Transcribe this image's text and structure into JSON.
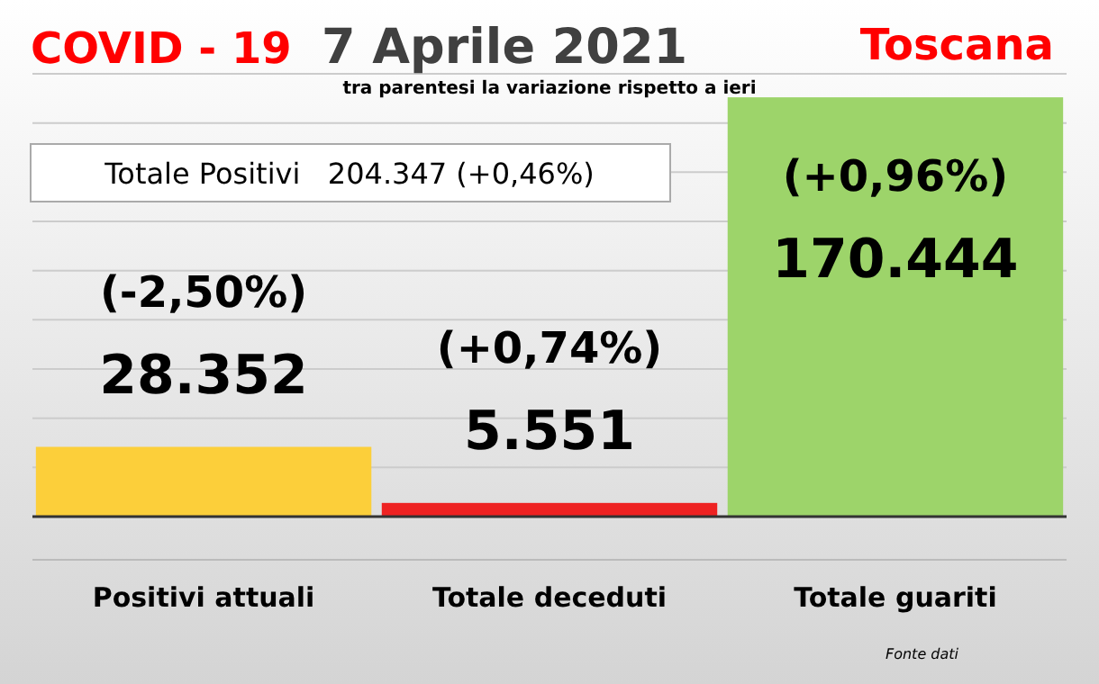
{
  "chart_data": {
    "type": "bar",
    "title": "7 Aprile 2021",
    "subtitle": "tra parentesi la variazione rispetto a ieri",
    "annotations": [
      "COVID - 19",
      "Toscana",
      "Totale Positivi   204.347 (+0,46%)",
      {
        "text": "(-2,50%)",
        "x": "Positivi attuali",
        "y": 28352
      },
      {
        "text": "(+0,74%)",
        "x": "Totale deceduti",
        "y": 5551
      },
      {
        "text": "(+0,96%)",
        "x": "Totale guariti",
        "y": 170444
      },
      "Fonte dati"
    ],
    "categories": [
      "Positivi attuali",
      "Totale deceduti",
      "Totale guariti"
    ],
    "values": [
      28352,
      5551,
      170444
    ],
    "colors": [
      "#fccf3a",
      "#ee2222",
      "#9dd46a"
    ],
    "value_labels": [
      "28.352",
      "5.551",
      "170.444"
    ],
    "ylim": [
      0,
      180000
    ],
    "yticks": [
      {
        "value": 0,
        "label": null
      },
      {
        "value": 20000,
        "label": null
      },
      {
        "value": 40000,
        "label": null
      },
      {
        "value": 60000,
        "label": null
      },
      {
        "value": 80000,
        "label": null
      },
      {
        "value": 100000,
        "label": null
      },
      {
        "value": 120000,
        "label": null
      },
      {
        "value": 140000,
        "label": null
      },
      {
        "value": 160000,
        "label": null
      },
      {
        "value": 180000,
        "label": null
      }
    ],
    "grid": "y",
    "tick_labels": "x"
  }
}
